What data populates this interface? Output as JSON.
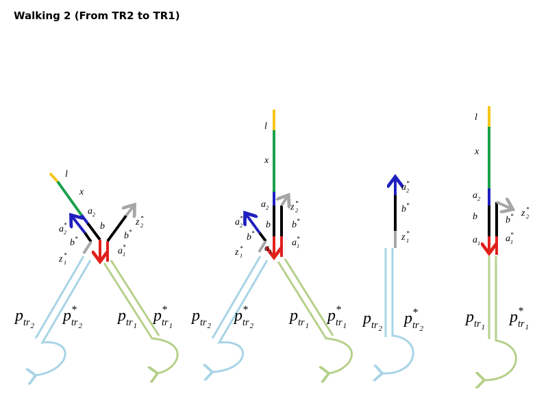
{
  "title": "Walking 2 (From TR2 to TR1)",
  "panels": [
    {
      "labels": [
        {
          "base": "l"
        },
        {
          "base": "x"
        },
        {
          "base": "a",
          "sub": "2"
        },
        {
          "base": "b"
        },
        {
          "base": "a",
          "sub": "2",
          "sup": "*"
        },
        {
          "base": "b",
          "sup": "*"
        },
        {
          "base": "z",
          "sub": "1",
          "sup": "*"
        },
        {
          "base": "a",
          "sub": "1",
          "sup": "*"
        },
        {
          "base": "b",
          "sup": "*"
        },
        {
          "base": "z",
          "sub": "2",
          "sup": "*"
        },
        {
          "base": "p",
          "sub": "tr",
          "subsub": "2"
        },
        {
          "base": "p",
          "sub": "tr",
          "subsub": "2",
          "sup": "*"
        },
        {
          "base": "p",
          "sub": "tr",
          "subsub": "1"
        },
        {
          "base": "p",
          "sub": "tr",
          "subsub": "1",
          "sup": "*"
        }
      ]
    },
    {
      "labels": [
        {
          "base": "l"
        },
        {
          "base": "x"
        },
        {
          "base": "a",
          "sub": "2"
        },
        {
          "base": "b"
        },
        {
          "base": "a",
          "sub": "1"
        },
        {
          "base": "a",
          "sub": "2",
          "sup": "*"
        },
        {
          "base": "b",
          "sup": "*"
        },
        {
          "base": "z",
          "sub": "1",
          "sup": "*"
        },
        {
          "base": "z",
          "sub": "2",
          "sup": "*"
        },
        {
          "base": "b",
          "sup": "*"
        },
        {
          "base": "a",
          "sub": "1",
          "sup": "*"
        },
        {
          "base": "p",
          "sub": "tr",
          "subsub": "2"
        },
        {
          "base": "p",
          "sub": "tr",
          "subsub": "2",
          "sup": "*"
        },
        {
          "base": "p",
          "sub": "tr",
          "subsub": "1"
        },
        {
          "base": "p",
          "sub": "tr",
          "subsub": "1",
          "sup": "*"
        }
      ]
    },
    {
      "labels": [
        {
          "base": "a",
          "sub": "2",
          "sup": "*"
        },
        {
          "base": "b",
          "sup": "*"
        },
        {
          "base": "z",
          "sub": "1",
          "sup": "*"
        },
        {
          "base": "p",
          "sub": "tr",
          "subsub": "2"
        },
        {
          "base": "p",
          "sub": "tr",
          "subsub": "2",
          "sup": "*"
        }
      ]
    },
    {
      "labels": [
        {
          "base": "l"
        },
        {
          "base": "x"
        },
        {
          "base": "a",
          "sub": "2"
        },
        {
          "base": "b"
        },
        {
          "base": "a",
          "sub": "1"
        },
        {
          "base": "b",
          "sup": "*"
        },
        {
          "base": "z",
          "sub": "2",
          "sup": "*"
        },
        {
          "base": "a",
          "sub": "1",
          "sup": "*"
        },
        {
          "base": "p",
          "sub": "tr",
          "subsub": "1"
        },
        {
          "base": "p",
          "sub": "tr",
          "subsub": "1",
          "sup": "*"
        }
      ]
    }
  ]
}
